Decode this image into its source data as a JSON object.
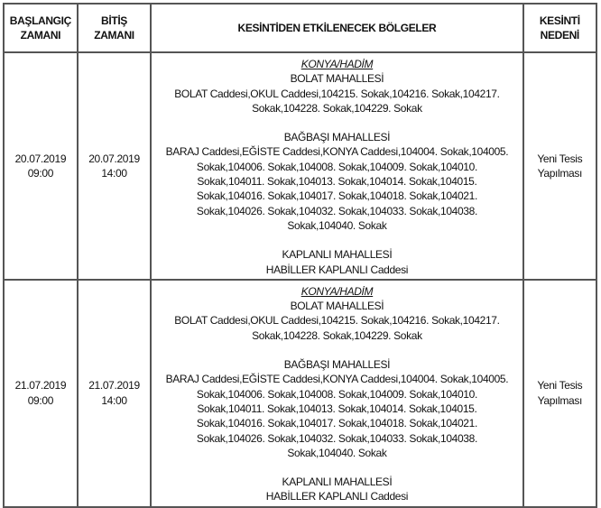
{
  "headers": [
    "BAŞLANGIÇ ZAMANI",
    "BİTİŞ ZAMANI",
    "KESİNTİDEN ETKİLENECEK BÖLGELER",
    "KESİNTİ NEDENİ"
  ],
  "header_lines": [
    [
      "BAŞLANGIÇ",
      "ZAMANI"
    ],
    [
      "BİTİŞ",
      "ZAMANI"
    ],
    [
      "KESİNTİDEN ETKİLENECEK BÖLGELER"
    ],
    [
      "KESİNTİ",
      "NEDENİ"
    ]
  ],
  "rows": [
    {
      "start": [
        "20.07.2019",
        "09:00"
      ],
      "end": [
        "20.07.2019",
        "14:00"
      ],
      "city": "KONYA/HADİM",
      "districts": [
        {
          "name": "BOLAT MAHALLESİ",
          "lines": [
            "BOLAT Caddesi,OKUL Caddesi,104215. Sokak,104216. Sokak,104217.",
            "Sokak,104228. Sokak,104229. Sokak"
          ]
        },
        {
          "name": "BAĞBAŞI MAHALLESİ",
          "lines": [
            "BARAJ Caddesi,EĞİSTE Caddesi,KONYA Caddesi,104004. Sokak,104005.",
            "Sokak,104006. Sokak,104008. Sokak,104009. Sokak,104010.",
            "Sokak,104011. Sokak,104013. Sokak,104014. Sokak,104015.",
            "Sokak,104016. Sokak,104017. Sokak,104018. Sokak,104021.",
            "Sokak,104026. Sokak,104032. Sokak,104033. Sokak,104038.",
            "Sokak,104040. Sokak"
          ]
        },
        {
          "name": "KAPLANLI MAHALLESİ",
          "lines": [
            "HABİLLER KAPLANLI Caddesi"
          ]
        }
      ],
      "reason": [
        "Yeni Tesis",
        "Yapılması"
      ]
    },
    {
      "start": [
        "21.07.2019",
        "09:00"
      ],
      "end": [
        "21.07.2019",
        "14:00"
      ],
      "city": "KONYA/HADİM",
      "districts": [
        {
          "name": "BOLAT MAHALLESİ",
          "lines": [
            "BOLAT Caddesi,OKUL Caddesi,104215. Sokak,104216. Sokak,104217.",
            "Sokak,104228. Sokak,104229. Sokak"
          ]
        },
        {
          "name": "BAĞBAŞI MAHALLESİ",
          "lines": [
            "BARAJ Caddesi,EĞİSTE Caddesi,KONYA Caddesi,104004. Sokak,104005.",
            "Sokak,104006. Sokak,104008. Sokak,104009. Sokak,104010.",
            "Sokak,104011. Sokak,104013. Sokak,104014. Sokak,104015.",
            "Sokak,104016. Sokak,104017. Sokak,104018. Sokak,104021.",
            "Sokak,104026. Sokak,104032. Sokak,104033. Sokak,104038.",
            "Sokak,104040. Sokak"
          ]
        },
        {
          "name": "KAPLANLI MAHALLESİ",
          "lines": [
            "HABİLLER KAPLANLI Caddesi"
          ]
        }
      ],
      "reason": [
        "Yeni Tesis",
        "Yapılması"
      ]
    }
  ]
}
